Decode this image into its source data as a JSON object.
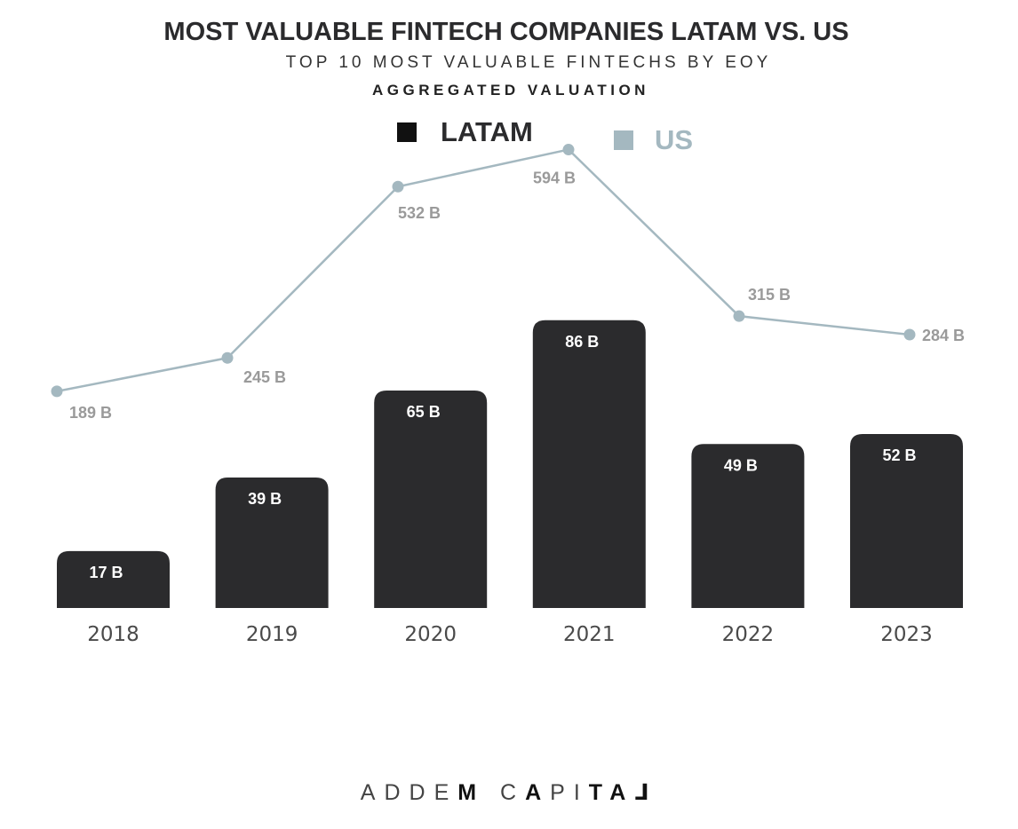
{
  "chart_data": {
    "type": "bar",
    "title": "MOST VALUABLE FINTECH COMPANIES LATAM VS. US",
    "subtitle": "TOP 10 MOST VALUABLE FINTECHS BY EOY",
    "subtitle2": "AGGREGATED VALUATION",
    "categories": [
      "2018",
      "2019",
      "2020",
      "2021",
      "2022",
      "2023"
    ],
    "series": [
      {
        "name": "LATAM",
        "kind": "bar",
        "color": "#2b2b2d",
        "values": [
          17,
          39,
          65,
          86,
          49,
          52
        ],
        "labels": [
          "17 B",
          "39 B",
          "65 B",
          "86 B",
          "49 B",
          "52 B"
        ]
      },
      {
        "name": "US",
        "kind": "line",
        "color": "#a4b8c0",
        "values": [
          189,
          245,
          532,
          594,
          315,
          284
        ],
        "labels": [
          "189 B",
          "245 B",
          "532 B",
          "594 B",
          "315 B",
          "284 B"
        ]
      }
    ],
    "xlabel": "",
    "ylabel": "",
    "legend_position": "top-center"
  },
  "footer": {
    "parts": [
      {
        "text": "ADDE",
        "style": "w"
      },
      {
        "text": "M",
        "style": "b"
      },
      {
        "text": " C",
        "style": "w"
      },
      {
        "text": "A",
        "style": "b"
      },
      {
        "text": "P",
        "style": "w"
      },
      {
        "text": "I",
        "style": "w"
      },
      {
        "text": "TA",
        "style": "b"
      },
      {
        "text": "⅃",
        "style": "b"
      }
    ]
  }
}
